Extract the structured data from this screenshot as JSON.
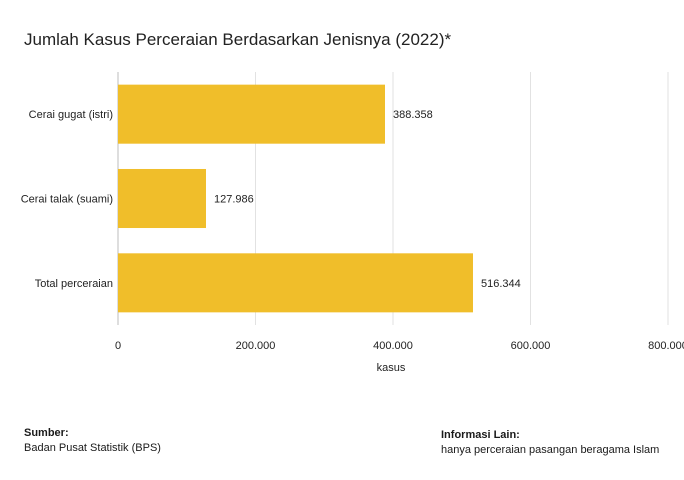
{
  "chart_data": {
    "type": "bar",
    "orientation": "horizontal",
    "title": "Jumlah Kasus Perceraian Berdasarkan Jenisnya (2022)*",
    "categories": [
      "Cerai gugat (istri)",
      "Cerai talak (suami)",
      "Total perceraian"
    ],
    "values": [
      388358,
      127986,
      516344
    ],
    "value_labels": [
      "388.358",
      "127.986",
      "516.344"
    ],
    "xlabel": "kasus",
    "ylabel": "",
    "xlim": [
      0,
      800000
    ],
    "x_ticks": [
      0,
      200000,
      400000,
      600000,
      800000
    ],
    "x_tick_labels": [
      "0",
      "200.000",
      "400.000",
      "600.000",
      "800.000"
    ],
    "grid": "vertical",
    "bar_color": "#f0be2a"
  },
  "footer": {
    "source_heading": "Sumber:",
    "source_text": "Badan Pusat Statistik (BPS)",
    "info_heading": "Informasi Lain:",
    "info_text": "hanya perceraian pasangan beragama Islam"
  }
}
